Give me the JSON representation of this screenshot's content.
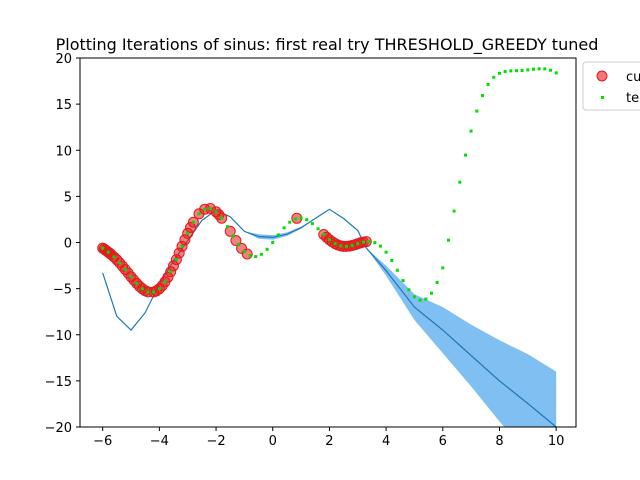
{
  "chart_data": {
    "type": "scatter",
    "title": "Plotting Iterations of sinus: first real try THRESHOLD_GREEDY tuned",
    "xlabel": "",
    "ylabel": "",
    "xlim": [
      -6.8,
      10.7
    ],
    "ylim": [
      -20,
      20
    ],
    "xticks": [
      -6,
      -4,
      -2,
      0,
      2,
      4,
      6,
      8,
      10
    ],
    "yticks": [
      -20,
      -15,
      -10,
      -5,
      0,
      5,
      10,
      15,
      20
    ],
    "grid": false,
    "legend_position": "top-right (partially cut off)",
    "legend": [
      {
        "label": "cu",
        "marker": "circle",
        "color": "#e31a1c"
      },
      {
        "label": "te",
        "marker": "square-dot",
        "color": "#00e000"
      }
    ],
    "colors": {
      "sampled": "#e31a1c",
      "target": "#00e000",
      "fit_line": "#1f77b4",
      "confidence_band": "#6ab4ee"
    },
    "target_x": [
      -6.0,
      -5.8,
      -5.6,
      -5.4,
      -5.2,
      -5.0,
      -4.8,
      -4.6,
      -4.4,
      -4.2,
      -4.0,
      -3.8,
      -3.6,
      -3.4,
      -3.2,
      -3.0,
      -2.8,
      -2.6,
      -2.4,
      -2.2,
      -2.0,
      -1.8,
      -1.6,
      -1.4,
      -1.2,
      -1.0,
      -0.8,
      -0.6,
      -0.4,
      -0.2,
      0.0,
      0.2,
      0.4,
      0.6,
      0.8,
      1.0,
      1.2,
      1.4,
      1.6,
      1.8,
      2.0,
      2.2,
      2.4,
      2.6,
      2.8,
      3.0,
      3.2,
      3.4,
      3.6,
      3.8,
      4.0,
      4.2,
      4.4,
      4.6,
      4.8,
      5.0,
      5.2,
      5.4,
      5.6,
      5.8,
      6.0,
      6.2,
      6.4,
      6.6,
      6.8,
      7.0,
      7.2,
      7.4,
      7.6,
      7.8,
      8.0,
      8.2,
      8.4,
      8.6,
      8.8,
      9.0,
      9.2,
      9.4,
      9.6,
      9.8,
      10.0
    ],
    "sampled_x": [
      -6.0,
      -5.95,
      -5.9,
      -5.85,
      -5.8,
      -5.75,
      -5.7,
      -5.6,
      -5.5,
      -5.4,
      -5.3,
      -5.2,
      -5.1,
      -5.0,
      -4.9,
      -4.8,
      -4.7,
      -4.6,
      -4.5,
      -4.4,
      -4.2,
      -4.1,
      -4.0,
      -3.9,
      -3.8,
      -3.7,
      -3.6,
      -3.5,
      -3.4,
      -3.3,
      -3.2,
      -3.1,
      -3.0,
      -2.9,
      -2.8,
      -2.6,
      -2.4,
      -2.2,
      -2.0,
      -1.9,
      -1.8,
      -1.5,
      -1.3,
      -1.1,
      -0.9,
      0.85,
      1.8,
      1.9,
      2.0,
      2.1,
      2.2,
      2.3,
      2.4,
      2.5,
      2.6,
      2.7,
      2.8,
      2.9,
      3.0,
      3.1,
      3.2,
      3.3
    ],
    "fit_curve": {
      "x": [
        -6.0,
        -5.5,
        -5.0,
        -4.5,
        -4.0,
        -3.5,
        -3.0,
        -2.5,
        -2.0,
        -1.5,
        -1.0,
        -0.5,
        0.0,
        0.5,
        1.0,
        1.5,
        2.0,
        2.5,
        3.0,
        3.3,
        4.0,
        5.0,
        6.0,
        7.0,
        8.0,
        9.0,
        10.0
      ],
      "lower": [
        -3.3,
        -8.0,
        -9.5,
        -7.6,
        -4.5,
        -2.0,
        0.2,
        2.4,
        3.5,
        2.8,
        1.2,
        0.4,
        0.3,
        0.7,
        1.5,
        2.6,
        3.6,
        2.6,
        1.3,
        -0.6,
        -3.6,
        -8.4,
        -12.0,
        -15.6,
        -19.4,
        -22.8,
        -26.0
      ],
      "upper": [
        -3.3,
        -8.0,
        -9.5,
        -7.6,
        -4.5,
        -2.0,
        0.2,
        2.4,
        3.5,
        2.8,
        1.2,
        0.9,
        0.8,
        1.1,
        1.7,
        2.6,
        3.6,
        2.6,
        1.3,
        -0.6,
        -2.5,
        -5.6,
        -7.0,
        -8.9,
        -10.6,
        -12.1,
        -14.0
      ]
    }
  }
}
